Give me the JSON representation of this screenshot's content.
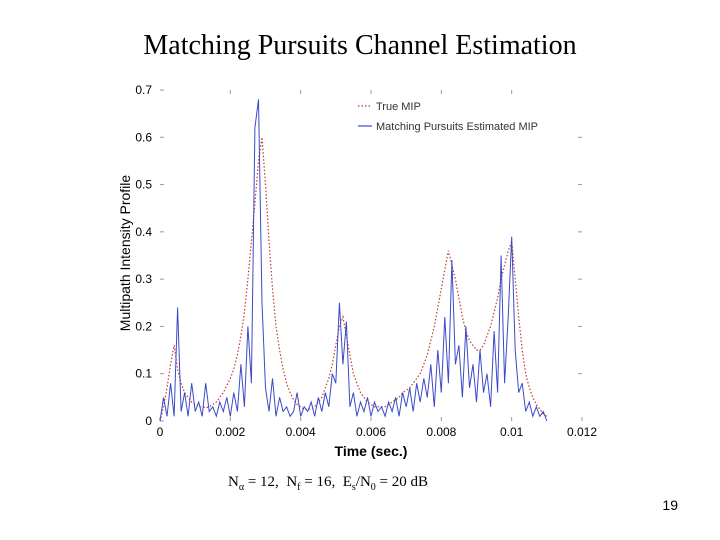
{
  "slide": {
    "title": "Matching Pursuits Channel Estimation",
    "page_number": "19",
    "params": {
      "n_alpha_label": "N",
      "n_alpha_sub": "α",
      "n_alpha_value": "= 12,",
      "n_f_label": "N",
      "n_f_sub": "f",
      "n_f_value": "= 16,",
      "snr_label": "E",
      "snr_sub1": "s",
      "snr_mid": "/N",
      "snr_sub2": "0",
      "snr_value": "= 20 dB"
    }
  },
  "chart_data": {
    "type": "line",
    "title": "",
    "xlabel": "Time (sec.)",
    "ylabel": "Multipath Intensity Profile",
    "xlim": [
      0,
      0.012
    ],
    "ylim": [
      0,
      0.7
    ],
    "xticks": [
      0,
      0.002,
      0.004,
      0.006,
      0.008,
      0.01,
      0.012
    ],
    "xtick_labels": [
      "0",
      "0.002",
      "0.004",
      "0.006",
      "0.008",
      "0.01",
      "0.012"
    ],
    "yticks": [
      0,
      0.1,
      0.2,
      0.3,
      0.4,
      0.5,
      0.6,
      0.7
    ],
    "ytick_labels": [
      "0",
      "0.1",
      "0.2",
      "0.3",
      "0.4",
      "0.5",
      "0.6",
      "0.7"
    ],
    "grid": false,
    "legend_position": "top-right",
    "series": [
      {
        "name": "True MIP",
        "color": "#c0392b",
        "style": "dotted",
        "x": [
          0.0,
          0.0001,
          0.0002,
          0.0003,
          0.0004,
          0.0005,
          0.0006,
          0.0007,
          0.0008,
          0.0009,
          0.001,
          0.0011,
          0.0012,
          0.0013,
          0.0014,
          0.0015,
          0.0016,
          0.0017,
          0.0018,
          0.0019,
          0.002,
          0.0021,
          0.0022,
          0.0023,
          0.0024,
          0.0025,
          0.0026,
          0.0027,
          0.0028,
          0.0029,
          0.003,
          0.0031,
          0.0032,
          0.0033,
          0.0034,
          0.0035,
          0.0036,
          0.0037,
          0.0038,
          0.0039,
          0.004,
          0.0041,
          0.0042,
          0.0043,
          0.0044,
          0.0045,
          0.0046,
          0.0047,
          0.0048,
          0.0049,
          0.005,
          0.0051,
          0.0052,
          0.0053,
          0.0054,
          0.0055,
          0.0056,
          0.0057,
          0.0058,
          0.0059,
          0.006,
          0.0061,
          0.0062,
          0.0063,
          0.0064,
          0.0065,
          0.0066,
          0.0067,
          0.0068,
          0.0069,
          0.007,
          0.0071,
          0.0072,
          0.0073,
          0.0074,
          0.0075,
          0.0076,
          0.0077,
          0.0078,
          0.0079,
          0.008,
          0.0081,
          0.0082,
          0.0083,
          0.0084,
          0.0085,
          0.0086,
          0.0087,
          0.0088,
          0.0089,
          0.009,
          0.0091,
          0.0092,
          0.0093,
          0.0094,
          0.0095,
          0.0096,
          0.0097,
          0.0098,
          0.0099,
          0.01,
          0.0101,
          0.0102,
          0.0103,
          0.0104,
          0.0105,
          0.0106,
          0.0107,
          0.0108,
          0.0109,
          0.011
        ],
        "values": [
          0.0,
          0.03,
          0.07,
          0.12,
          0.16,
          0.11,
          0.08,
          0.06,
          0.05,
          0.04,
          0.035,
          0.03,
          0.03,
          0.028,
          0.03,
          0.035,
          0.04,
          0.05,
          0.06,
          0.075,
          0.09,
          0.11,
          0.14,
          0.18,
          0.23,
          0.3,
          0.38,
          0.46,
          0.55,
          0.6,
          0.5,
          0.38,
          0.28,
          0.2,
          0.15,
          0.11,
          0.08,
          0.06,
          0.045,
          0.035,
          0.03,
          0.025,
          0.025,
          0.025,
          0.03,
          0.04,
          0.05,
          0.07,
          0.09,
          0.12,
          0.16,
          0.2,
          0.22,
          0.18,
          0.14,
          0.1,
          0.08,
          0.06,
          0.05,
          0.04,
          0.035,
          0.03,
          0.03,
          0.03,
          0.03,
          0.035,
          0.04,
          0.045,
          0.05,
          0.06,
          0.065,
          0.07,
          0.08,
          0.09,
          0.1,
          0.12,
          0.14,
          0.17,
          0.2,
          0.24,
          0.28,
          0.32,
          0.36,
          0.33,
          0.3,
          0.26,
          0.22,
          0.19,
          0.17,
          0.16,
          0.15,
          0.15,
          0.16,
          0.18,
          0.2,
          0.23,
          0.26,
          0.3,
          0.33,
          0.36,
          0.38,
          0.3,
          0.22,
          0.15,
          0.1,
          0.07,
          0.05,
          0.035,
          0.025,
          0.015,
          0.01
        ]
      },
      {
        "name": "Matching Pursuits Estimated MIP",
        "color": "#3b4bc8",
        "style": "solid",
        "x": [
          0.0,
          0.0001,
          0.0002,
          0.0003,
          0.0004,
          0.0005,
          0.0006,
          0.0007,
          0.0008,
          0.0009,
          0.001,
          0.0011,
          0.0012,
          0.0013,
          0.0014,
          0.0015,
          0.0016,
          0.0017,
          0.0018,
          0.0019,
          0.002,
          0.0021,
          0.0022,
          0.0023,
          0.0024,
          0.0025,
          0.0026,
          0.0027,
          0.0028,
          0.0029,
          0.003,
          0.0031,
          0.0032,
          0.0033,
          0.0034,
          0.0035,
          0.0036,
          0.0037,
          0.0038,
          0.0039,
          0.004,
          0.0041,
          0.0042,
          0.0043,
          0.0044,
          0.0045,
          0.0046,
          0.0047,
          0.0048,
          0.0049,
          0.005,
          0.0051,
          0.0052,
          0.0053,
          0.0054,
          0.0055,
          0.0056,
          0.0057,
          0.0058,
          0.0059,
          0.006,
          0.0061,
          0.0062,
          0.0063,
          0.0064,
          0.0065,
          0.0066,
          0.0067,
          0.0068,
          0.0069,
          0.007,
          0.0071,
          0.0072,
          0.0073,
          0.0074,
          0.0075,
          0.0076,
          0.0077,
          0.0078,
          0.0079,
          0.008,
          0.0081,
          0.0082,
          0.0083,
          0.0084,
          0.0085,
          0.0086,
          0.0087,
          0.0088,
          0.0089,
          0.009,
          0.0091,
          0.0092,
          0.0093,
          0.0094,
          0.0095,
          0.0096,
          0.0097,
          0.0098,
          0.0099,
          0.01,
          0.0101,
          0.0102,
          0.0103,
          0.0104,
          0.0105,
          0.0106,
          0.0107,
          0.0108,
          0.0109,
          0.011
        ],
        "values": [
          0.0,
          0.05,
          0.01,
          0.08,
          0.01,
          0.24,
          0.02,
          0.06,
          0.01,
          0.08,
          0.02,
          0.04,
          0.01,
          0.08,
          0.02,
          0.03,
          0.01,
          0.04,
          0.02,
          0.05,
          0.01,
          0.06,
          0.02,
          0.12,
          0.03,
          0.2,
          0.08,
          0.62,
          0.68,
          0.25,
          0.07,
          0.02,
          0.09,
          0.01,
          0.05,
          0.02,
          0.03,
          0.01,
          0.02,
          0.06,
          0.01,
          0.03,
          0.02,
          0.04,
          0.01,
          0.05,
          0.02,
          0.06,
          0.03,
          0.1,
          0.08,
          0.25,
          0.12,
          0.21,
          0.03,
          0.06,
          0.01,
          0.04,
          0.02,
          0.05,
          0.01,
          0.04,
          0.02,
          0.03,
          0.01,
          0.04,
          0.02,
          0.05,
          0.01,
          0.06,
          0.03,
          0.07,
          0.02,
          0.08,
          0.04,
          0.09,
          0.05,
          0.12,
          0.03,
          0.15,
          0.06,
          0.22,
          0.08,
          0.34,
          0.12,
          0.16,
          0.05,
          0.2,
          0.07,
          0.12,
          0.04,
          0.15,
          0.06,
          0.1,
          0.03,
          0.19,
          0.06,
          0.35,
          0.08,
          0.22,
          0.39,
          0.15,
          0.06,
          0.08,
          0.02,
          0.04,
          0.01,
          0.03,
          0.01,
          0.02,
          0.0
        ]
      }
    ]
  }
}
